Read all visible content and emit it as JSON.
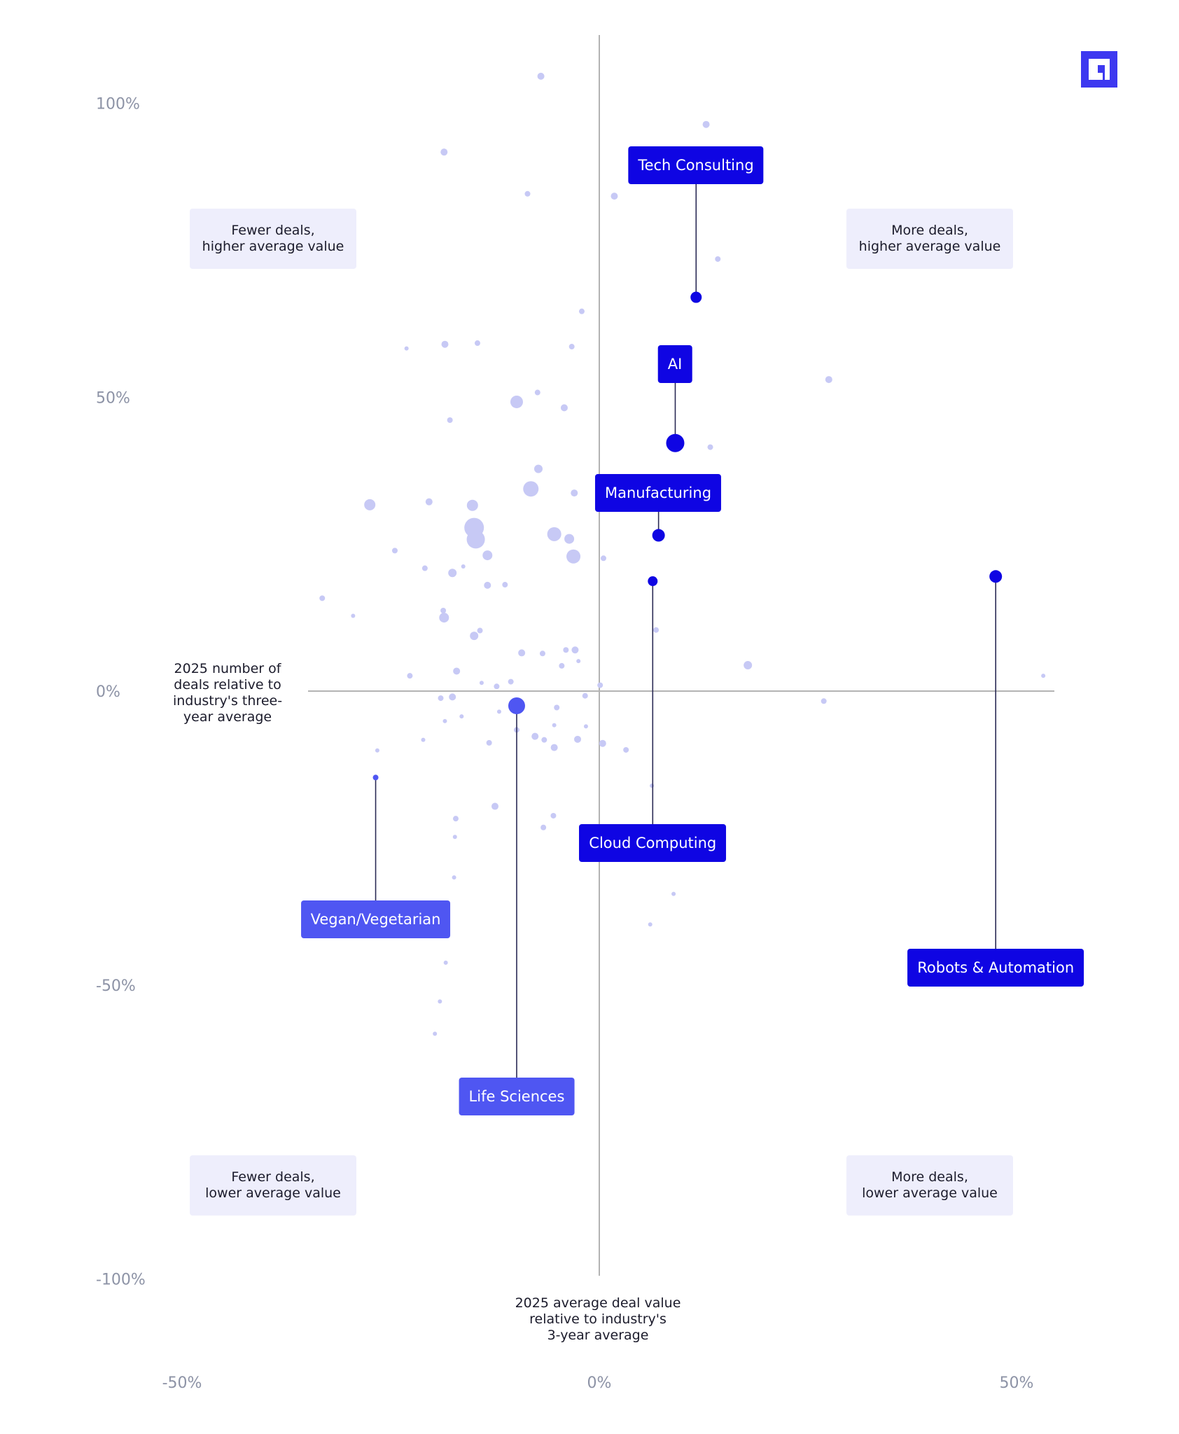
{
  "colors": {
    "accent": "#0f05e3",
    "accent_light": "#4f56f2",
    "dot": "#c7c9f5",
    "axis": "#b3b3b3",
    "tick": "#8d93a6"
  },
  "logo": {
    "icon": "brand-logo-icon",
    "color": "#3d38f0"
  },
  "quadrants": {
    "top_left": "Fewer deals,\nhigher average value",
    "top_right": "More deals,\nhigher average value",
    "bottom_left": "Fewer deals,\nlower average value",
    "bottom_right": "More deals,\nlower average value"
  },
  "chart_data": {
    "type": "scatter",
    "xlabel": "2025 average deal value\nrelative to industry's\n3-year average",
    "ylabel": "2025 number of\ndeals relative to\nindustry's three-\nyear average",
    "xlim": [
      -50,
      50
    ],
    "ylim": [
      -100,
      100
    ],
    "x_ticks": [
      "-50%",
      "0%",
      "50%"
    ],
    "y_ticks": [
      "100%",
      "50%",
      "0%",
      "-50%",
      "-100%"
    ],
    "grid": false,
    "highlighted": [
      {
        "name": "Tech Consulting",
        "x": 11.6,
        "y": 67.0,
        "size": 8,
        "shade": "dark"
      },
      {
        "name": "AI",
        "x": 9.1,
        "y": 42.2,
        "size": 13,
        "shade": "dark"
      },
      {
        "name": "Manufacturing",
        "x": 7.1,
        "y": 26.5,
        "size": 9,
        "shade": "dark"
      },
      {
        "name": "Cloud Computing",
        "x": 6.4,
        "y": 18.7,
        "size": 7,
        "shade": "dark"
      },
      {
        "name": "Robots & Automation",
        "x": 47.5,
        "y": 19.5,
        "size": 9,
        "shade": "dark"
      },
      {
        "name": "Vegan/Vegetarian",
        "x": -26.8,
        "y": -14.7,
        "size": 4,
        "shade": "medium"
      },
      {
        "name": "Life Sciences",
        "x": -9.9,
        "y": -2.5,
        "size": 12,
        "shade": "medium"
      }
    ],
    "points": [
      {
        "x": -7.0,
        "y": 104.6,
        "size": 5
      },
      {
        "x": 12.8,
        "y": 96.4,
        "size": 5
      },
      {
        "x": -18.6,
        "y": 91.7,
        "size": 5
      },
      {
        "x": -8.6,
        "y": 84.6,
        "size": 4
      },
      {
        "x": 1.8,
        "y": 84.2,
        "size": 5
      },
      {
        "x": 14.2,
        "y": 73.5,
        "size": 4
      },
      {
        "x": -2.1,
        "y": 64.6,
        "size": 4
      },
      {
        "x": -23.1,
        "y": 58.3,
        "size": 3
      },
      {
        "x": -18.5,
        "y": 59.0,
        "size": 5
      },
      {
        "x": -14.6,
        "y": 59.2,
        "size": 4
      },
      {
        "x": -3.3,
        "y": 58.6,
        "size": 4
      },
      {
        "x": 27.5,
        "y": 53.0,
        "size": 5
      },
      {
        "x": -7.4,
        "y": 50.8,
        "size": 4
      },
      {
        "x": -9.9,
        "y": 49.2,
        "size": 9
      },
      {
        "x": -4.2,
        "y": 48.2,
        "size": 5
      },
      {
        "x": -17.9,
        "y": 46.1,
        "size": 4
      },
      {
        "x": 13.3,
        "y": 41.5,
        "size": 4
      },
      {
        "x": -7.3,
        "y": 37.8,
        "size": 6
      },
      {
        "x": -8.2,
        "y": 34.4,
        "size": 11
      },
      {
        "x": -3.0,
        "y": 33.7,
        "size": 5
      },
      {
        "x": -27.5,
        "y": 31.7,
        "size": 8
      },
      {
        "x": -20.4,
        "y": 32.2,
        "size": 5
      },
      {
        "x": -15.2,
        "y": 31.6,
        "size": 8
      },
      {
        "x": -15.0,
        "y": 27.8,
        "size": 14
      },
      {
        "x": -14.8,
        "y": 25.8,
        "size": 13
      },
      {
        "x": -5.4,
        "y": 26.7,
        "size": 10
      },
      {
        "x": -3.6,
        "y": 25.9,
        "size": 7
      },
      {
        "x": -3.1,
        "y": 22.9,
        "size": 10
      },
      {
        "x": -13.4,
        "y": 23.1,
        "size": 7
      },
      {
        "x": 0.5,
        "y": 22.6,
        "size": 4
      },
      {
        "x": -24.5,
        "y": 23.9,
        "size": 4
      },
      {
        "x": -20.9,
        "y": 20.9,
        "size": 4
      },
      {
        "x": -16.3,
        "y": 21.2,
        "size": 3
      },
      {
        "x": -17.6,
        "y": 20.1,
        "size": 6
      },
      {
        "x": -13.4,
        "y": 18.0,
        "size": 5
      },
      {
        "x": -11.3,
        "y": 18.1,
        "size": 4
      },
      {
        "x": -33.2,
        "y": 15.8,
        "size": 4
      },
      {
        "x": -29.5,
        "y": 12.8,
        "size": 3
      },
      {
        "x": -18.7,
        "y": 13.7,
        "size": 4
      },
      {
        "x": -18.6,
        "y": 12.5,
        "size": 7
      },
      {
        "x": -14.3,
        "y": 10.3,
        "size": 4
      },
      {
        "x": -15.0,
        "y": 9.4,
        "size": 6
      },
      {
        "x": 6.8,
        "y": 10.4,
        "size": 4
      },
      {
        "x": -9.3,
        "y": 6.5,
        "size": 5
      },
      {
        "x": -6.8,
        "y": 6.4,
        "size": 4
      },
      {
        "x": -4.0,
        "y": 7.0,
        "size": 4
      },
      {
        "x": -2.9,
        "y": 7.0,
        "size": 5
      },
      {
        "x": -4.5,
        "y": 4.3,
        "size": 4
      },
      {
        "x": -2.5,
        "y": 5.1,
        "size": 3
      },
      {
        "x": 17.8,
        "y": 4.4,
        "size": 6
      },
      {
        "x": -17.1,
        "y": 3.4,
        "size": 5
      },
      {
        "x": -22.7,
        "y": 2.6,
        "size": 4
      },
      {
        "x": -14.1,
        "y": 1.4,
        "size": 3
      },
      {
        "x": -12.3,
        "y": 0.8,
        "size": 4
      },
      {
        "x": -10.6,
        "y": 1.6,
        "size": 4
      },
      {
        "x": 0.1,
        "y": 1.0,
        "size": 4
      },
      {
        "x": 53.2,
        "y": 2.6,
        "size": 3
      },
      {
        "x": -1.7,
        "y": -0.8,
        "size": 4
      },
      {
        "x": -19.0,
        "y": -1.2,
        "size": 4
      },
      {
        "x": -17.6,
        "y": -1.0,
        "size": 5
      },
      {
        "x": 26.9,
        "y": -1.7,
        "size": 4
      },
      {
        "x": -5.1,
        "y": -2.8,
        "size": 4
      },
      {
        "x": -12.0,
        "y": -3.5,
        "size": 3
      },
      {
        "x": -16.5,
        "y": -4.3,
        "size": 3
      },
      {
        "x": -18.5,
        "y": -5.1,
        "size": 3
      },
      {
        "x": -5.4,
        "y": -5.8,
        "size": 3
      },
      {
        "x": -1.6,
        "y": -6.0,
        "size": 3
      },
      {
        "x": -9.9,
        "y": -6.6,
        "size": 4
      },
      {
        "x": -7.7,
        "y": -7.7,
        "size": 5
      },
      {
        "x": -6.6,
        "y": -8.3,
        "size": 4
      },
      {
        "x": -2.6,
        "y": -8.2,
        "size": 5
      },
      {
        "x": -21.1,
        "y": -8.3,
        "size": 3
      },
      {
        "x": -13.2,
        "y": -8.8,
        "size": 4
      },
      {
        "x": 0.4,
        "y": -8.9,
        "size": 5
      },
      {
        "x": -5.4,
        "y": -9.6,
        "size": 5
      },
      {
        "x": 3.2,
        "y": -10.0,
        "size": 4
      },
      {
        "x": -26.6,
        "y": -10.1,
        "size": 3
      },
      {
        "x": 6.3,
        "y": -16.1,
        "size": 3
      },
      {
        "x": -12.5,
        "y": -19.6,
        "size": 5
      },
      {
        "x": -17.2,
        "y": -21.7,
        "size": 4
      },
      {
        "x": -5.5,
        "y": -21.2,
        "size": 4
      },
      {
        "x": -6.7,
        "y": -23.2,
        "size": 4
      },
      {
        "x": -17.3,
        "y": -24.8,
        "size": 3
      },
      {
        "x": -17.4,
        "y": -31.7,
        "size": 3
      },
      {
        "x": 8.9,
        "y": -34.5,
        "size": 3
      },
      {
        "x": 6.1,
        "y": -39.7,
        "size": 3
      },
      {
        "x": -18.4,
        "y": -46.2,
        "size": 3
      },
      {
        "x": -19.1,
        "y": -52.8,
        "size": 3
      },
      {
        "x": -19.7,
        "y": -58.3,
        "size": 3
      }
    ]
  }
}
